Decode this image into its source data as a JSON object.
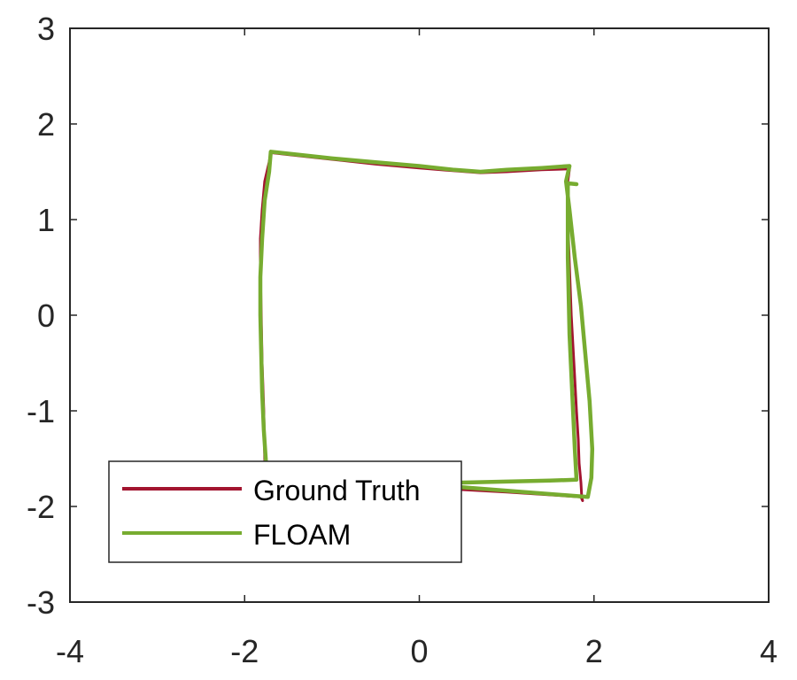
{
  "chart_data": {
    "type": "line",
    "title": "",
    "xlabel": "",
    "ylabel": "",
    "xlim": [
      -4,
      4
    ],
    "ylim": [
      -3,
      3
    ],
    "xticks": [
      -4,
      -2,
      0,
      2,
      4
    ],
    "yticks": [
      -3,
      -2,
      -1,
      0,
      1,
      2,
      3
    ],
    "xtick_labels": [
      "-4",
      "-2",
      "0",
      "2",
      "4"
    ],
    "ytick_labels": [
      "-3",
      "-2",
      "-1",
      "0",
      "1",
      "2",
      "3"
    ],
    "grid": false,
    "legend": {
      "location": "bottom-left"
    },
    "series": [
      {
        "name": "Ground Truth",
        "color": "#a2142f",
        "x": [
          -1.75,
          -1.77,
          -1.78,
          -1.8,
          -1.81,
          -1.82,
          -1.82,
          -1.8,
          -1.77,
          -1.72,
          -1.7,
          -1.5,
          -1.0,
          -0.5,
          0.0,
          0.4,
          0.7,
          1.0,
          1.4,
          1.72,
          1.7,
          1.7,
          1.72,
          1.74,
          1.77,
          1.8,
          1.82,
          1.83,
          1.85,
          1.86,
          1.87,
          1.85,
          1.0,
          0.0,
          -0.5,
          -1.0,
          -1.5,
          -1.78
        ],
        "y": [
          -1.8,
          -1.5,
          -1.0,
          -0.5,
          0.0,
          0.5,
          0.8,
          1.1,
          1.4,
          1.6,
          1.7,
          1.68,
          1.63,
          1.58,
          1.54,
          1.51,
          1.49,
          1.5,
          1.52,
          1.53,
          1.4,
          1.0,
          0.5,
          0.0,
          -0.5,
          -1.0,
          -1.3,
          -1.55,
          -1.75,
          -1.9,
          -1.94,
          -1.9,
          -1.85,
          -1.8,
          -1.78,
          -1.78,
          -1.77,
          -1.76
        ]
      },
      {
        "name": "FLOAM",
        "color": "#77ac30",
        "x": [
          -1.74,
          -1.78,
          -1.8,
          -1.81,
          -1.82,
          -1.82,
          -1.8,
          -1.77,
          -1.72,
          -1.7,
          -1.5,
          -1.0,
          -0.5,
          0.0,
          0.4,
          0.7,
          1.0,
          1.4,
          1.72,
          1.68,
          1.72,
          1.78,
          1.85,
          1.9,
          1.95,
          1.98,
          1.97,
          1.93,
          1.5,
          0.5,
          0.0,
          -0.5,
          -1.0,
          -1.4,
          -1.0,
          0.0,
          0.5,
          1.0,
          1.5,
          1.8,
          1.78,
          1.75,
          1.72,
          1.7,
          1.7,
          1.8
        ],
        "y": [
          -1.75,
          -1.2,
          -0.8,
          -0.4,
          0.0,
          0.4,
          0.8,
          1.2,
          1.5,
          1.71,
          1.69,
          1.64,
          1.6,
          1.56,
          1.52,
          1.5,
          1.52,
          1.54,
          1.56,
          1.4,
          1.1,
          0.6,
          0.1,
          -0.4,
          -0.9,
          -1.4,
          -1.7,
          -1.9,
          -1.87,
          -1.8,
          -1.78,
          -1.75,
          -1.72,
          -1.72,
          -1.74,
          -1.75,
          -1.75,
          -1.74,
          -1.73,
          -1.72,
          -1.4,
          -0.8,
          -0.2,
          0.6,
          1.38,
          1.37
        ]
      }
    ]
  }
}
